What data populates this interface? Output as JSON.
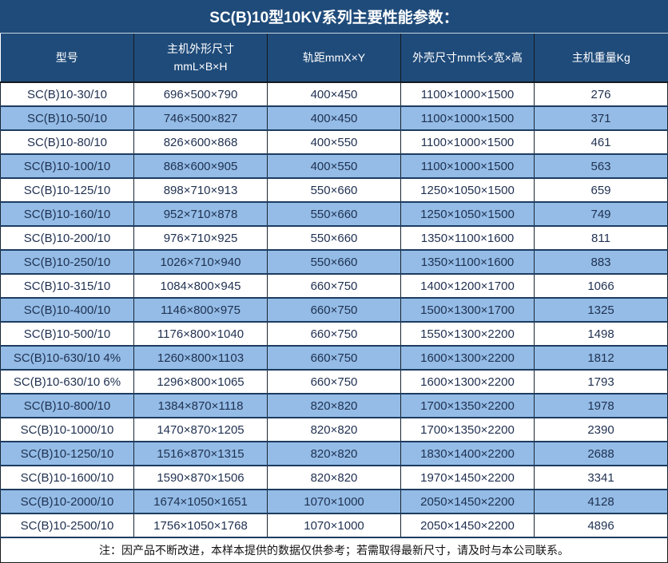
{
  "title": "SC(B)10型10KV系列主要性能参数：",
  "note": "注：因产品不断改进，本样本提供的数据仅供参考；若需取得最新尺寸，请及时与本公司联系。",
  "colors": {
    "header_bg": "#1f4b7a",
    "band_blue": "#94bce6",
    "band_white": "#ffffff",
    "data_text": "#1f3050",
    "header_text": "#ffffff",
    "grid_line": "#1c3c60"
  },
  "table": {
    "headers": [
      {
        "lines": [
          "型号"
        ]
      },
      {
        "lines": [
          "主机外形尺寸",
          "mmL×B×H"
        ]
      },
      {
        "lines": [
          "轨距mmX×Y"
        ]
      },
      {
        "lines": [
          "外壳尺寸mm长×宽×高"
        ]
      },
      {
        "lines": [
          "主机重量Kg"
        ]
      }
    ],
    "rows": [
      [
        "SC(B)10-30/10",
        "696×500×790",
        "400×450",
        "1100×1000×1500",
        "276"
      ],
      [
        "SC(B)10-50/10",
        "746×500×827",
        "400×450",
        "1100×1000×1500",
        "371"
      ],
      [
        "SC(B)10-80/10",
        "826×600×868",
        "400×550",
        "1100×1000×1500",
        "461"
      ],
      [
        "SC(B)10-100/10",
        "868×600×905",
        "400×550",
        "1100×1000×1500",
        "563"
      ],
      [
        "SC(B)10-125/10",
        "898×710×913",
        "550×660",
        "1250×1050×1500",
        "659"
      ],
      [
        "SC(B)10-160/10",
        "952×710×878",
        "550×660",
        "1250×1050×1500",
        "749"
      ],
      [
        "SC(B)10-200/10",
        "976×710×925",
        "550×660",
        "1350×1100×1600",
        "811"
      ],
      [
        "SC(B)10-250/10",
        "1026×710×940",
        "550×660",
        "1350×1100×1600",
        "883"
      ],
      [
        "SC(B)10-315/10",
        "1084×800×945",
        "660×750",
        "1400×1200×1700",
        "1066"
      ],
      [
        "SC(B)10-400/10",
        "1146×800×975",
        "660×750",
        "1500×1300×1700",
        "1325"
      ],
      [
        "SC(B)10-500/10",
        "1176×800×1040",
        "660×750",
        "1550×1300×2200",
        "1498"
      ],
      [
        "SC(B)10-630/10 4%",
        "1260×800×1103",
        "660×750",
        "1600×1300×2200",
        "1812"
      ],
      [
        "SC(B)10-630/10 6%",
        "1296×800×1065",
        "660×750",
        "1600×1300×2200",
        "1793"
      ],
      [
        "SC(B)10-800/10",
        "1384×870×1118",
        "820×820",
        "1700×1350×2200",
        "1978"
      ],
      [
        "SC(B)10-1000/10",
        "1470×870×1205",
        "820×820",
        "1700×1350×2200",
        "2390"
      ],
      [
        "SC(B)10-1250/10",
        "1516×870×1315",
        "820×820",
        "1830×1400×2200",
        "2688"
      ],
      [
        "SC(B)10-1600/10",
        "1590×870×1506",
        "820×820",
        "1970×1450×2200",
        "3341"
      ],
      [
        "SC(B)10-2000/10",
        "1674×1050×1651",
        "1070×1000",
        "2050×1450×2200",
        "4128"
      ],
      [
        "SC(B)10-2500/10",
        "1756×1050×1768",
        "1070×1000",
        "2050×1450×2200",
        "4896"
      ]
    ]
  }
}
